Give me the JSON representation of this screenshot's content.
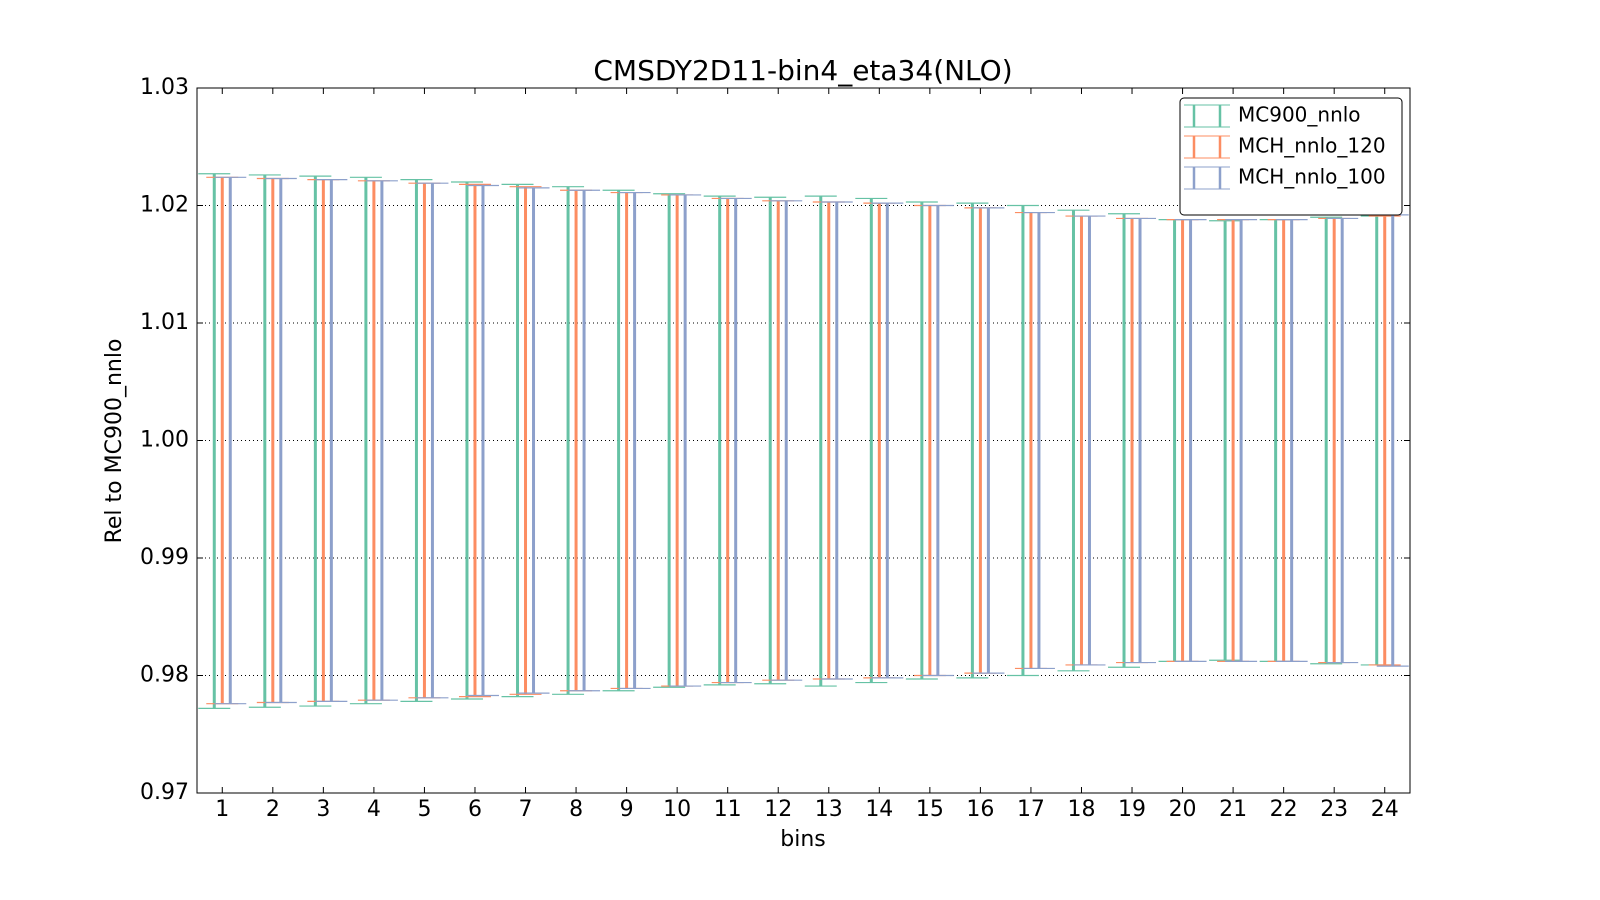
{
  "chart_data": {
    "type": "errorbar",
    "title": "CMSDY2D11-bin4_eta34(NLO)",
    "xlabel": "bins",
    "ylabel": "Rel to MC900_nnlo",
    "x": [
      1,
      2,
      3,
      4,
      5,
      6,
      7,
      8,
      9,
      10,
      11,
      12,
      13,
      14,
      15,
      16,
      17,
      18,
      19,
      20,
      21,
      22,
      23,
      24
    ],
    "xlim": [
      0.5,
      24.5
    ],
    "xticks": [
      1,
      2,
      3,
      4,
      5,
      6,
      7,
      8,
      9,
      10,
      11,
      12,
      13,
      14,
      15,
      16,
      17,
      18,
      19,
      20,
      21,
      22,
      23,
      24
    ],
    "ylim": [
      0.97,
      1.03
    ],
    "yticks": [
      0.97,
      0.98,
      0.99,
      {
        "value": 1,
        "label": "1.00"
      },
      1.01,
      1.02,
      1.03
    ],
    "grid": true,
    "legend": "upper right",
    "series": [
      {
        "name": "MC900_nnlo",
        "color": "#66c2a5",
        "low": [
          0.9772,
          0.9773,
          0.9774,
          0.9776,
          0.9778,
          0.978,
          0.9782,
          0.9784,
          0.9787,
          0.979,
          0.9792,
          0.9793,
          0.9791,
          0.9794,
          0.9797,
          0.9798,
          0.98,
          0.9804,
          0.9807,
          0.9812,
          0.9813,
          0.9812,
          0.981,
          0.9809
        ],
        "high": [
          1.0227,
          1.0226,
          1.0225,
          1.0224,
          1.0222,
          1.022,
          1.0218,
          1.0216,
          1.0213,
          1.021,
          1.0208,
          1.0207,
          1.0208,
          1.0206,
          1.0203,
          1.0202,
          1.02,
          1.0196,
          1.0193,
          1.0188,
          1.0187,
          1.0188,
          1.019,
          1.0191
        ]
      },
      {
        "name": "MCH_nnlo_120",
        "color": "#fc8d62",
        "low": [
          0.9776,
          0.9777,
          0.9778,
          0.9779,
          0.9781,
          0.9782,
          0.9784,
          0.9787,
          0.9789,
          0.9791,
          0.9794,
          0.9796,
          0.9797,
          0.9798,
          0.98,
          0.9802,
          0.9806,
          0.9809,
          0.9811,
          0.9812,
          0.9812,
          0.9812,
          0.9811,
          0.9809
        ],
        "high": [
          1.0224,
          1.0223,
          1.0222,
          1.0221,
          1.0219,
          1.0218,
          1.0216,
          1.0213,
          1.0211,
          1.0209,
          1.0206,
          1.0204,
          1.0203,
          1.0202,
          1.02,
          1.0198,
          1.0194,
          1.0191,
          1.0189,
          1.0188,
          1.0188,
          1.0188,
          1.0189,
          1.0191
        ]
      },
      {
        "name": "MCH_nnlo_100",
        "color": "#8da0cb",
        "low": [
          0.9776,
          0.9777,
          0.9778,
          0.9779,
          0.9781,
          0.9783,
          0.9785,
          0.9787,
          0.9789,
          0.9791,
          0.9794,
          0.9796,
          0.9797,
          0.9798,
          0.98,
          0.9802,
          0.9806,
          0.9809,
          0.9811,
          0.9812,
          0.9812,
          0.9812,
          0.9811,
          0.9808
        ],
        "high": [
          1.0224,
          1.0223,
          1.0222,
          1.0221,
          1.0219,
          1.0217,
          1.0215,
          1.0213,
          1.0211,
          1.0209,
          1.0206,
          1.0204,
          1.0203,
          1.0202,
          1.02,
          1.0198,
          1.0194,
          1.0191,
          1.0189,
          1.0188,
          1.0188,
          1.0188,
          1.0189,
          1.0192
        ]
      }
    ]
  }
}
